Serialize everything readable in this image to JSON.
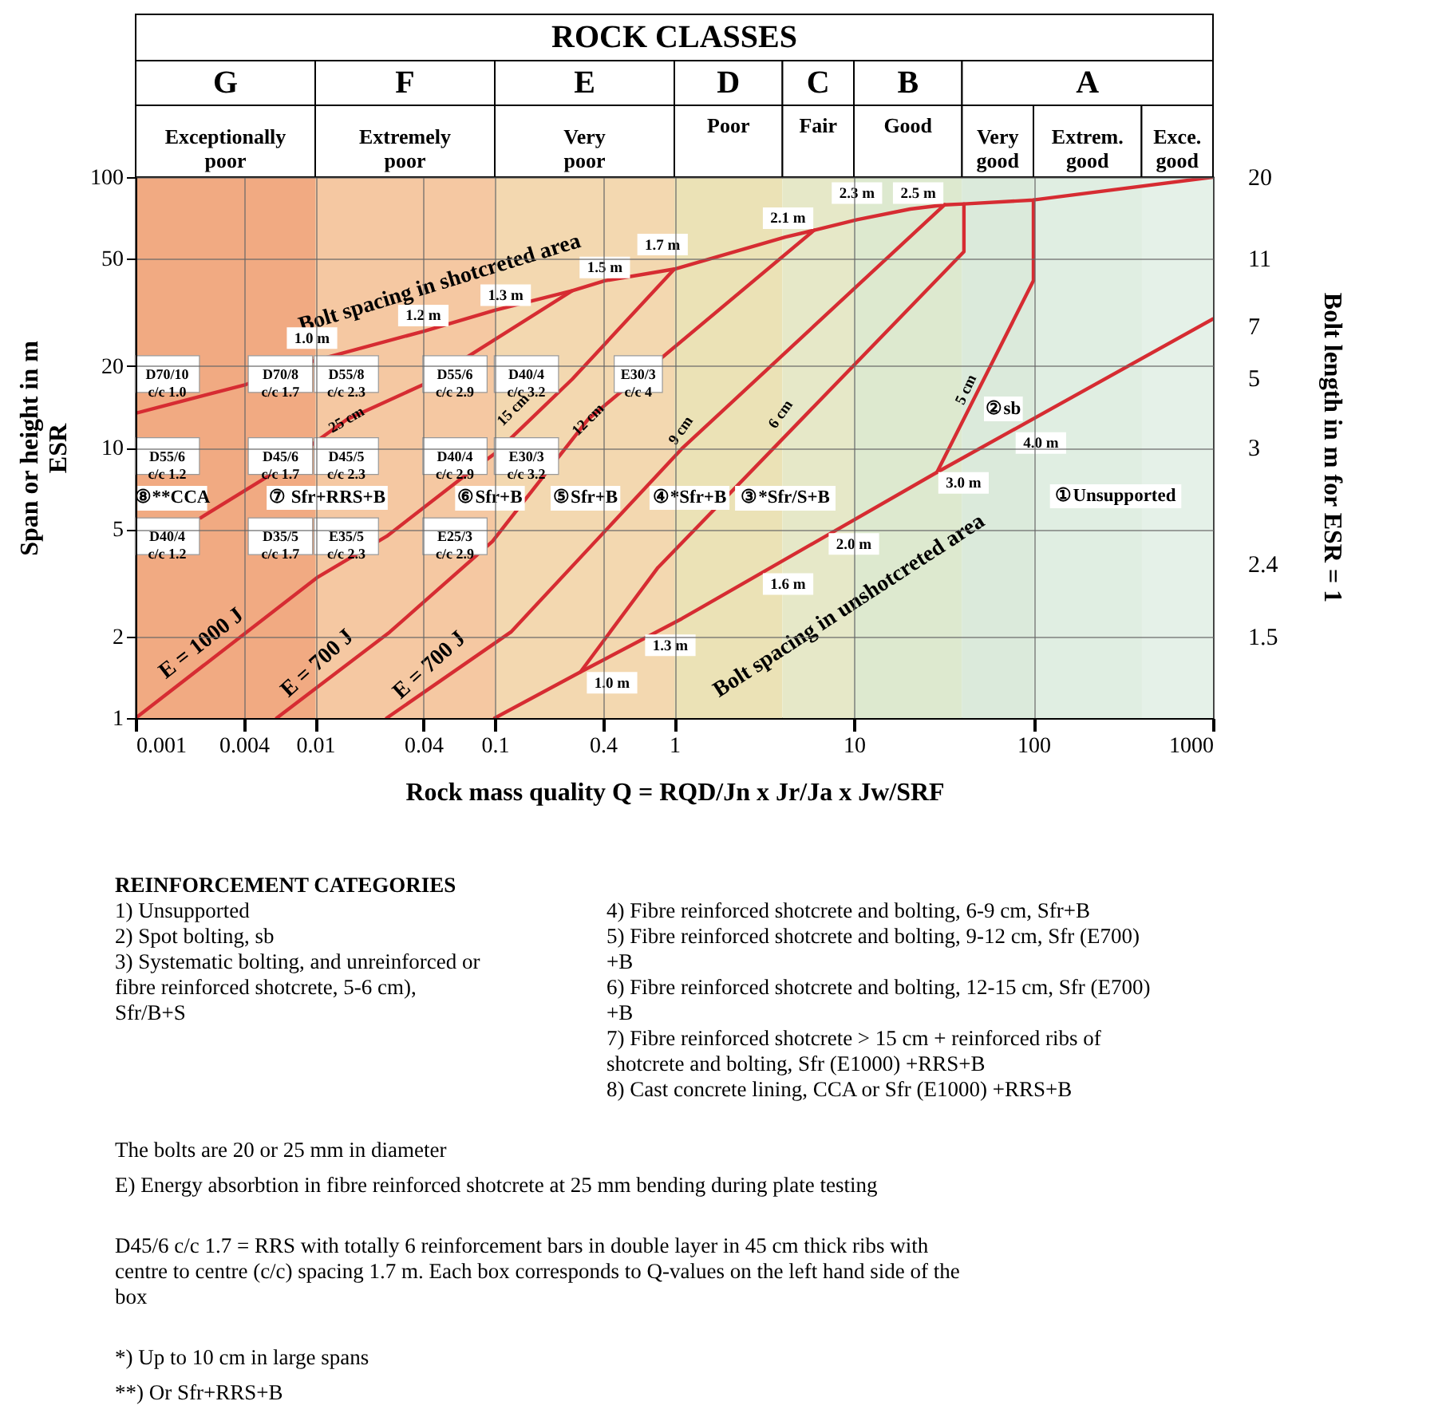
{
  "chart_data": {
    "type": "line",
    "title": "ROCK CLASSES",
    "xlabel": "Rock mass quality Q = RQD/Jn x Jr/Ja x Jw/SRF",
    "ylabel": "Span or height in m\nESR",
    "y2label": "Bolt length in m for ESR = 1",
    "log": "xy",
    "grid": true,
    "marker": "none",
    "line_style": "solid",
    "xlim": [
      0.001,
      1000
    ],
    "ylim": [
      1,
      100
    ],
    "xticks": [
      0.001,
      0.004,
      0.01,
      0.04,
      0.1,
      0.4,
      1,
      10,
      100,
      1000
    ],
    "yticks": [
      1,
      2,
      5,
      10,
      20,
      50,
      100
    ],
    "series": [
      {
        "color": "#d62c32",
        "x": [
          0.001,
          0.0041,
          0.01,
          0.04,
          0.1,
          0.27,
          0.41,
          1,
          4.15,
          6,
          10.4,
          20.6,
          32,
          41,
          100,
          1000
        ],
        "values": [
          13.4,
          17.1,
          21,
          26.9,
          32.2,
          38,
          41.4,
          45.7,
          60,
          63.6,
          69.6,
          76.2,
          79,
          79.6,
          82.3,
          100
        ]
      },
      {
        "color": "#d62c32",
        "x": [
          0.0023,
          0.0054,
          0.015,
          0.04,
          0.27
        ],
        "values": [
          5.5,
          7.8,
          12.7,
          17.1,
          38
        ]
      },
      {
        "color": "#d62c32",
        "x": [
          0.001,
          0.0102,
          0.025,
          0.067,
          0.1,
          0.27,
          1
        ],
        "values": [
          1,
          3.3,
          4.7,
          7.8,
          9.5,
          17.9,
          45.7
        ]
      },
      {
        "color": "#d62c32",
        "x": [
          0.0061,
          0.026,
          0.097,
          0.33,
          6
        ],
        "values": [
          1,
          2.08,
          4.5,
          12.7,
          63.6
        ]
      },
      {
        "color": "#d62c32",
        "x": [
          0.025,
          0.123,
          1.1,
          32
        ],
        "values": [
          1,
          2.08,
          9.9,
          79
        ]
      },
      {
        "color": "#d62c32",
        "x": [
          0.3,
          0.81,
          41,
          41
        ],
        "values": [
          1.48,
          3.6,
          53,
          79.6
        ]
      },
      {
        "color": "#d62c32",
        "x": [
          29,
          100,
          100
        ],
        "values": [
          8.1,
          41.4,
          82.3
        ]
      },
      {
        "color": "#d62c32",
        "x": [
          0.1,
          0.3,
          1.1,
          29,
          1000
        ],
        "values": [
          1,
          1.48,
          2.33,
          8.1,
          29.9
        ]
      }
    ],
    "bands": [
      {
        "axis": "x",
        "from": 0.001,
        "to": 0.01,
        "label": "G Exceptionally poor",
        "color": "#f1aa82"
      },
      {
        "axis": "x",
        "from": 0.01,
        "to": 0.1,
        "label": "F Extremely poor",
        "color": "#f5c8a2"
      },
      {
        "axis": "x",
        "from": 0.1,
        "to": 1,
        "label": "E Very poor",
        "color": "#f3d8b0"
      },
      {
        "axis": "x",
        "from": 1,
        "to": 4,
        "label": "D Poor",
        "color": "#ebe2b6"
      },
      {
        "axis": "x",
        "from": 4,
        "to": 10,
        "label": "C Fair",
        "color": "#e6e8c8"
      },
      {
        "axis": "x",
        "from": 10,
        "to": 40,
        "label": "B Good",
        "color": "#dde9cf"
      },
      {
        "axis": "x",
        "from": 40,
        "to": 1000,
        "label": "A",
        "color": "#dcebd9"
      },
      {
        "axis": "x",
        "from": 40,
        "to": 100,
        "label": "Very good",
        "color": "#dbeadb"
      },
      {
        "axis": "x",
        "from": 100,
        "to": 400,
        "label": "Extrem. good",
        "color": "#e0eee2"
      },
      {
        "axis": "x",
        "from": 400,
        "to": 1000,
        "label": "Exce. good",
        "color": "#e5f1e8"
      }
    ],
    "annotations": [
      {
        "text": "Bolt spacing in shotcreted area",
        "x": 0.058,
        "y": 28.5
      },
      {
        "text": "Bolt spacing in unshotcreted area",
        "x": 9.4,
        "y": 2.6
      },
      {
        "text": "E = 1000 J",
        "x": 0.0027,
        "y": 1.66
      },
      {
        "text": "E = 700 J",
        "x": 0.0121,
        "y": 1.41
      },
      {
        "text": "E = 700 J",
        "x": 0.051,
        "y": 1.39
      },
      {
        "text": "25 cm",
        "x": 0.0149,
        "y": 12.7
      },
      {
        "text": "15 cm",
        "x": 0.15,
        "y": 12.3
      },
      {
        "text": "12 cm",
        "x": 0.33,
        "y": 12.7
      },
      {
        "text": "9 cm",
        "x": 1.26,
        "y": 10.8
      },
      {
        "text": "6 cm",
        "x": 3.9,
        "y": 13.3
      },
      {
        "text": "5 cm",
        "x": 42,
        "y": 16.4
      },
      {
        "text": "1.0 m",
        "x": 0.0096,
        "y": 25.4
      },
      {
        "text": "1.2 m",
        "x": 0.04,
        "y": 30.8
      },
      {
        "text": "1.3 m",
        "x": 0.115,
        "y": 36.6
      },
      {
        "text": "1.5 m",
        "x": 0.41,
        "y": 46.3
      },
      {
        "text": "1.7 m",
        "x": 0.86,
        "y": 56.3
      },
      {
        "text": "2.1 m",
        "x": 4.3,
        "y": 70.5
      },
      {
        "text": "2.3 m",
        "x": 10.4,
        "y": 87.3
      },
      {
        "text": "2.5 m",
        "x": 22.8,
        "y": 87.3
      },
      {
        "text": "4.0 m",
        "x": 110,
        "y": 10.4
      },
      {
        "text": "3.0 m",
        "x": 40.8,
        "y": 7.4
      },
      {
        "text": "2.0 m",
        "x": 10,
        "y": 4.4
      },
      {
        "text": "1.6 m",
        "x": 4.3,
        "y": 3.13
      },
      {
        "text": "1.3 m",
        "x": 0.95,
        "y": 1.86
      },
      {
        "text": "1.0 m",
        "x": 0.45,
        "y": 1.35
      },
      {
        "text": "D70/10 c/c 1.0",
        "x": 0.0015,
        "y": 18.7
      },
      {
        "text": "D70/8 c/c 1.7",
        "x": 0.0064,
        "y": 18.7
      },
      {
        "text": "D55/8 c/c 2.3",
        "x": 0.0149,
        "y": 18.7
      },
      {
        "text": "D55/6 c/c 2.9",
        "x": 0.06,
        "y": 18.7
      },
      {
        "text": "D40/4 c/c 3.2",
        "x": 0.15,
        "y": 18.7
      },
      {
        "text": "E30/3 c/c 4",
        "x": 0.63,
        "y": 18.7
      },
      {
        "text": "D55/6 c/c 1.2",
        "x": 0.0015,
        "y": 9.3
      },
      {
        "text": "D45/6 c/c 1.7",
        "x": 0.0064,
        "y": 9.3
      },
      {
        "text": "D45/5 c/c 2.3",
        "x": 0.0149,
        "y": 9.3
      },
      {
        "text": "D40/4 c/c 2.9",
        "x": 0.06,
        "y": 9.3
      },
      {
        "text": "E30/3 c/c 3.2",
        "x": 0.15,
        "y": 9.3
      },
      {
        "text": "D40/4 c/c 1.2",
        "x": 0.0015,
        "y": 4.7
      },
      {
        "text": "D35/5 c/c 1.7",
        "x": 0.0064,
        "y": 4.7
      },
      {
        "text": "E35/5 c/c 2.3",
        "x": 0.0149,
        "y": 4.7
      },
      {
        "text": "E25/3 c/c 2.9",
        "x": 0.06,
        "y": 4.7
      },
      {
        "text": "⑧**CCA",
        "x": 0.0016,
        "y": 6.5
      },
      {
        "text": "⑥Sfr+B",
        "x": 0.094,
        "y": 6.5
      },
      {
        "text": "⑤Sfr+B",
        "x": 0.32,
        "y": 6.5
      },
      {
        "text": "③*Sfr/S+B",
        "x": 4.15,
        "y": 6.5
      },
      {
        "text": "②sb",
        "x": 68,
        "y": 13.9
      },
      {
        "text": "20",
        "x": 1000,
        "y": 100
      },
      {
        "text": "11",
        "x": 1000,
        "y": 50
      },
      {
        "text": "7",
        "x": 1000,
        "y": 28
      },
      {
        "text": "5",
        "x": 1000,
        "y": 18
      },
      {
        "text": "3",
        "x": 1000,
        "y": 10
      },
      {
        "text": "2.4",
        "x": 1000,
        "y": 3.7
      },
      {
        "text": "1.5",
        "x": 1000,
        "y": 2
      },
      "⑦ Sfr+RRS+B",
      "④*Sfr+B",
      "①Unsupported",
      "REINFORCEMENT CATEGORIES",
      "1) Unsupported",
      "2) Spot bolting, sb",
      "3) Systematic bolting, and unreinforced or fibre reinforced shotcrete, 5-6 cm), Sfr/B+S",
      "4) Fibre reinforced shotcrete and bolting, 6-9 cm, Sfr+B",
      "5) Fibre reinforced shotcrete and bolting, 9-12 cm, Sfr (E700) +B",
      "6) Fibre reinforced shotcrete and bolting, 12-15 cm, Sfr (E700) +B",
      "7) Fibre reinforced shotcrete > 15 cm + reinforced ribs of shotcrete and bolting, Sfr (E1000) +RRS+B",
      "8) Cast concrete lining, CCA or Sfr (E1000) +RRS+B",
      "The bolts are 20 or 25 mm in diameter",
      "E) Energy absorbtion in fibre reinforced shotcrete at 25 mm bending during plate testing",
      "D45/6 c/c 1.7 = RRS with totally 6 reinforcement bars in double layer in 45 cm thick ribs with centre to centre (c/c) spacing 1.7 m. Each box corresponds to Q-values on the left hand side of the box",
      "*) Up to 10 cm in large spans",
      "**) Or Sfr+RRS+B"
    ]
  }
}
